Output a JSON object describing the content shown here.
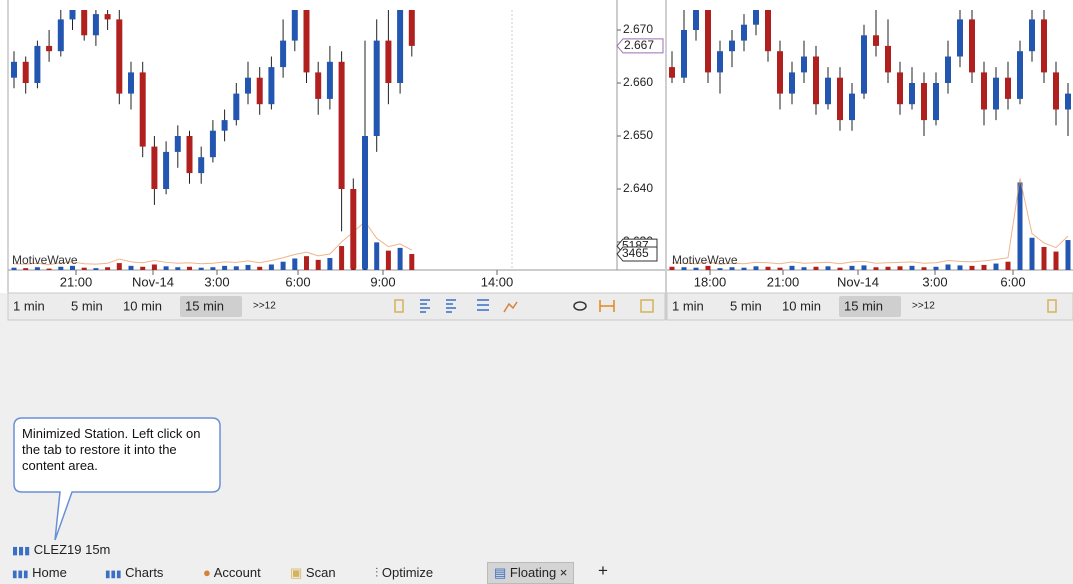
{
  "left_chart": {
    "watermark": "MotiveWave",
    "price_ticks": [
      {
        "value": 2.67,
        "label": "2.670"
      },
      {
        "value": 2.66,
        "label": "2.660"
      },
      {
        "value": 2.65,
        "label": "2.650"
      },
      {
        "value": 2.64,
        "label": "2.640"
      },
      {
        "value": 2.63,
        "label": "2.630"
      }
    ],
    "last_price": {
      "value": 2.667,
      "label": "2.667"
    },
    "volume_labels": [
      5187,
      3465
    ],
    "time_labels": [
      "21:00",
      "Nov-14",
      "3:00",
      "6:00",
      "9:00",
      "14:00"
    ],
    "timeframes": [
      "1 min",
      "5 min",
      "10 min",
      "15 min"
    ],
    "selected_timeframe": "15 min",
    "more": ">>12",
    "candles": [
      [
        2.661,
        2.666,
        2.659,
        2.664
      ],
      [
        2.664,
        2.665,
        2.658,
        2.66
      ],
      [
        2.66,
        2.668,
        2.659,
        2.667
      ],
      [
        2.667,
        2.67,
        2.664,
        2.666
      ],
      [
        2.666,
        2.675,
        2.665,
        2.672
      ],
      [
        2.672,
        2.676,
        2.67,
        2.674
      ],
      [
        2.674,
        2.676,
        2.668,
        2.669
      ],
      [
        2.669,
        2.676,
        2.667,
        2.673
      ],
      [
        2.673,
        2.677,
        2.67,
        2.672
      ],
      [
        2.672,
        2.674,
        2.656,
        2.658
      ],
      [
        2.658,
        2.664,
        2.655,
        2.662
      ],
      [
        2.662,
        2.664,
        2.646,
        2.648
      ],
      [
        2.648,
        2.65,
        2.637,
        2.64
      ],
      [
        2.64,
        2.649,
        2.639,
        2.647
      ],
      [
        2.647,
        2.652,
        2.644,
        2.65
      ],
      [
        2.65,
        2.651,
        2.641,
        2.643
      ],
      [
        2.643,
        2.648,
        2.641,
        2.646
      ],
      [
        2.646,
        2.653,
        2.645,
        2.651
      ],
      [
        2.651,
        2.655,
        2.649,
        2.653
      ],
      [
        2.653,
        2.66,
        2.652,
        2.658
      ],
      [
        2.658,
        2.664,
        2.656,
        2.661
      ],
      [
        2.661,
        2.663,
        2.654,
        2.656
      ],
      [
        2.656,
        2.665,
        2.655,
        2.663
      ],
      [
        2.663,
        2.672,
        2.661,
        2.668
      ],
      [
        2.668,
        2.676,
        2.666,
        2.674
      ],
      [
        2.674,
        2.675,
        2.66,
        2.662
      ],
      [
        2.662,
        2.664,
        2.654,
        2.657
      ],
      [
        2.657,
        2.667,
        2.655,
        2.664
      ],
      [
        2.664,
        2.666,
        2.632,
        2.64
      ],
      [
        2.64,
        2.642,
        2.622,
        2.625
      ],
      [
        2.625,
        2.668,
        2.62,
        2.65
      ],
      [
        2.65,
        2.672,
        2.647,
        2.668
      ],
      [
        2.668,
        2.674,
        2.656,
        2.66
      ],
      [
        2.66,
        2.676,
        2.658,
        2.674
      ],
      [
        2.674,
        2.676,
        2.665,
        2.667
      ]
    ],
    "volume": [
      500,
      400,
      600,
      300,
      700,
      900,
      500,
      400,
      600,
      1500,
      900,
      700,
      1200,
      800,
      600,
      700,
      500,
      600,
      900,
      800,
      1100,
      700,
      1200,
      1800,
      2500,
      3000,
      2200,
      2600,
      5200,
      7400,
      9600,
      6000,
      4200,
      4800,
      3465
    ]
  },
  "right_chart": {
    "watermark": "MotiveWave",
    "time_labels": [
      "18:00",
      "21:00",
      "Nov-14",
      "3:00",
      "6:00"
    ],
    "timeframes": [
      "1 min",
      "5 min",
      "10 min",
      "15 min"
    ],
    "selected_timeframe": "15 min",
    "more": ">>12",
    "candles": [
      [
        2.663,
        2.666,
        2.66,
        2.661
      ],
      [
        2.661,
        2.674,
        2.66,
        2.67
      ],
      [
        2.67,
        2.676,
        2.668,
        2.674
      ],
      [
        2.674,
        2.676,
        2.66,
        2.662
      ],
      [
        2.662,
        2.668,
        2.658,
        2.666
      ],
      [
        2.666,
        2.67,
        2.663,
        2.668
      ],
      [
        2.668,
        2.673,
        2.666,
        2.671
      ],
      [
        2.671,
        2.676,
        2.669,
        2.674
      ],
      [
        2.674,
        2.676,
        2.664,
        2.666
      ],
      [
        2.666,
        2.668,
        2.655,
        2.658
      ],
      [
        2.658,
        2.664,
        2.656,
        2.662
      ],
      [
        2.662,
        2.668,
        2.66,
        2.665
      ],
      [
        2.665,
        2.667,
        2.654,
        2.656
      ],
      [
        2.656,
        2.663,
        2.655,
        2.661
      ],
      [
        2.661,
        2.663,
        2.651,
        2.653
      ],
      [
        2.653,
        2.66,
        2.651,
        2.658
      ],
      [
        2.658,
        2.671,
        2.657,
        2.669
      ],
      [
        2.669,
        2.674,
        2.665,
        2.667
      ],
      [
        2.667,
        2.672,
        2.66,
        2.662
      ],
      [
        2.662,
        2.664,
        2.654,
        2.656
      ],
      [
        2.656,
        2.663,
        2.655,
        2.66
      ],
      [
        2.66,
        2.662,
        2.65,
        2.653
      ],
      [
        2.653,
        2.662,
        2.652,
        2.66
      ],
      [
        2.66,
        2.668,
        2.658,
        2.665
      ],
      [
        2.665,
        2.674,
        2.663,
        2.672
      ],
      [
        2.672,
        2.674,
        2.66,
        2.662
      ],
      [
        2.662,
        2.664,
        2.652,
        2.655
      ],
      [
        2.655,
        2.663,
        2.653,
        2.661
      ],
      [
        2.661,
        2.664,
        2.655,
        2.657
      ],
      [
        2.657,
        2.668,
        2.656,
        2.666
      ],
      [
        2.666,
        2.674,
        2.664,
        2.672
      ],
      [
        2.672,
        2.674,
        2.66,
        2.662
      ],
      [
        2.662,
        2.664,
        2.652,
        2.655
      ],
      [
        2.655,
        2.66,
        2.65,
        2.658
      ]
    ],
    "volume": [
      700,
      600,
      500,
      900,
      400,
      600,
      500,
      800,
      700,
      500,
      900,
      600,
      700,
      800,
      500,
      900,
      1000,
      600,
      700,
      800,
      900,
      600,
      700,
      1200,
      1000,
      900,
      1100,
      1400,
      1800,
      19000,
      7000,
      5000,
      4000,
      6500
    ]
  },
  "callout": "Minimized Station.  Left click on the tab to restore it into the content area.",
  "minimized_tab": "CLEZ19 15m",
  "tabs": [
    "Home",
    "Charts",
    "Account",
    "Scan",
    "Optimize",
    "Floating"
  ],
  "close": "×",
  "add": "+"
}
